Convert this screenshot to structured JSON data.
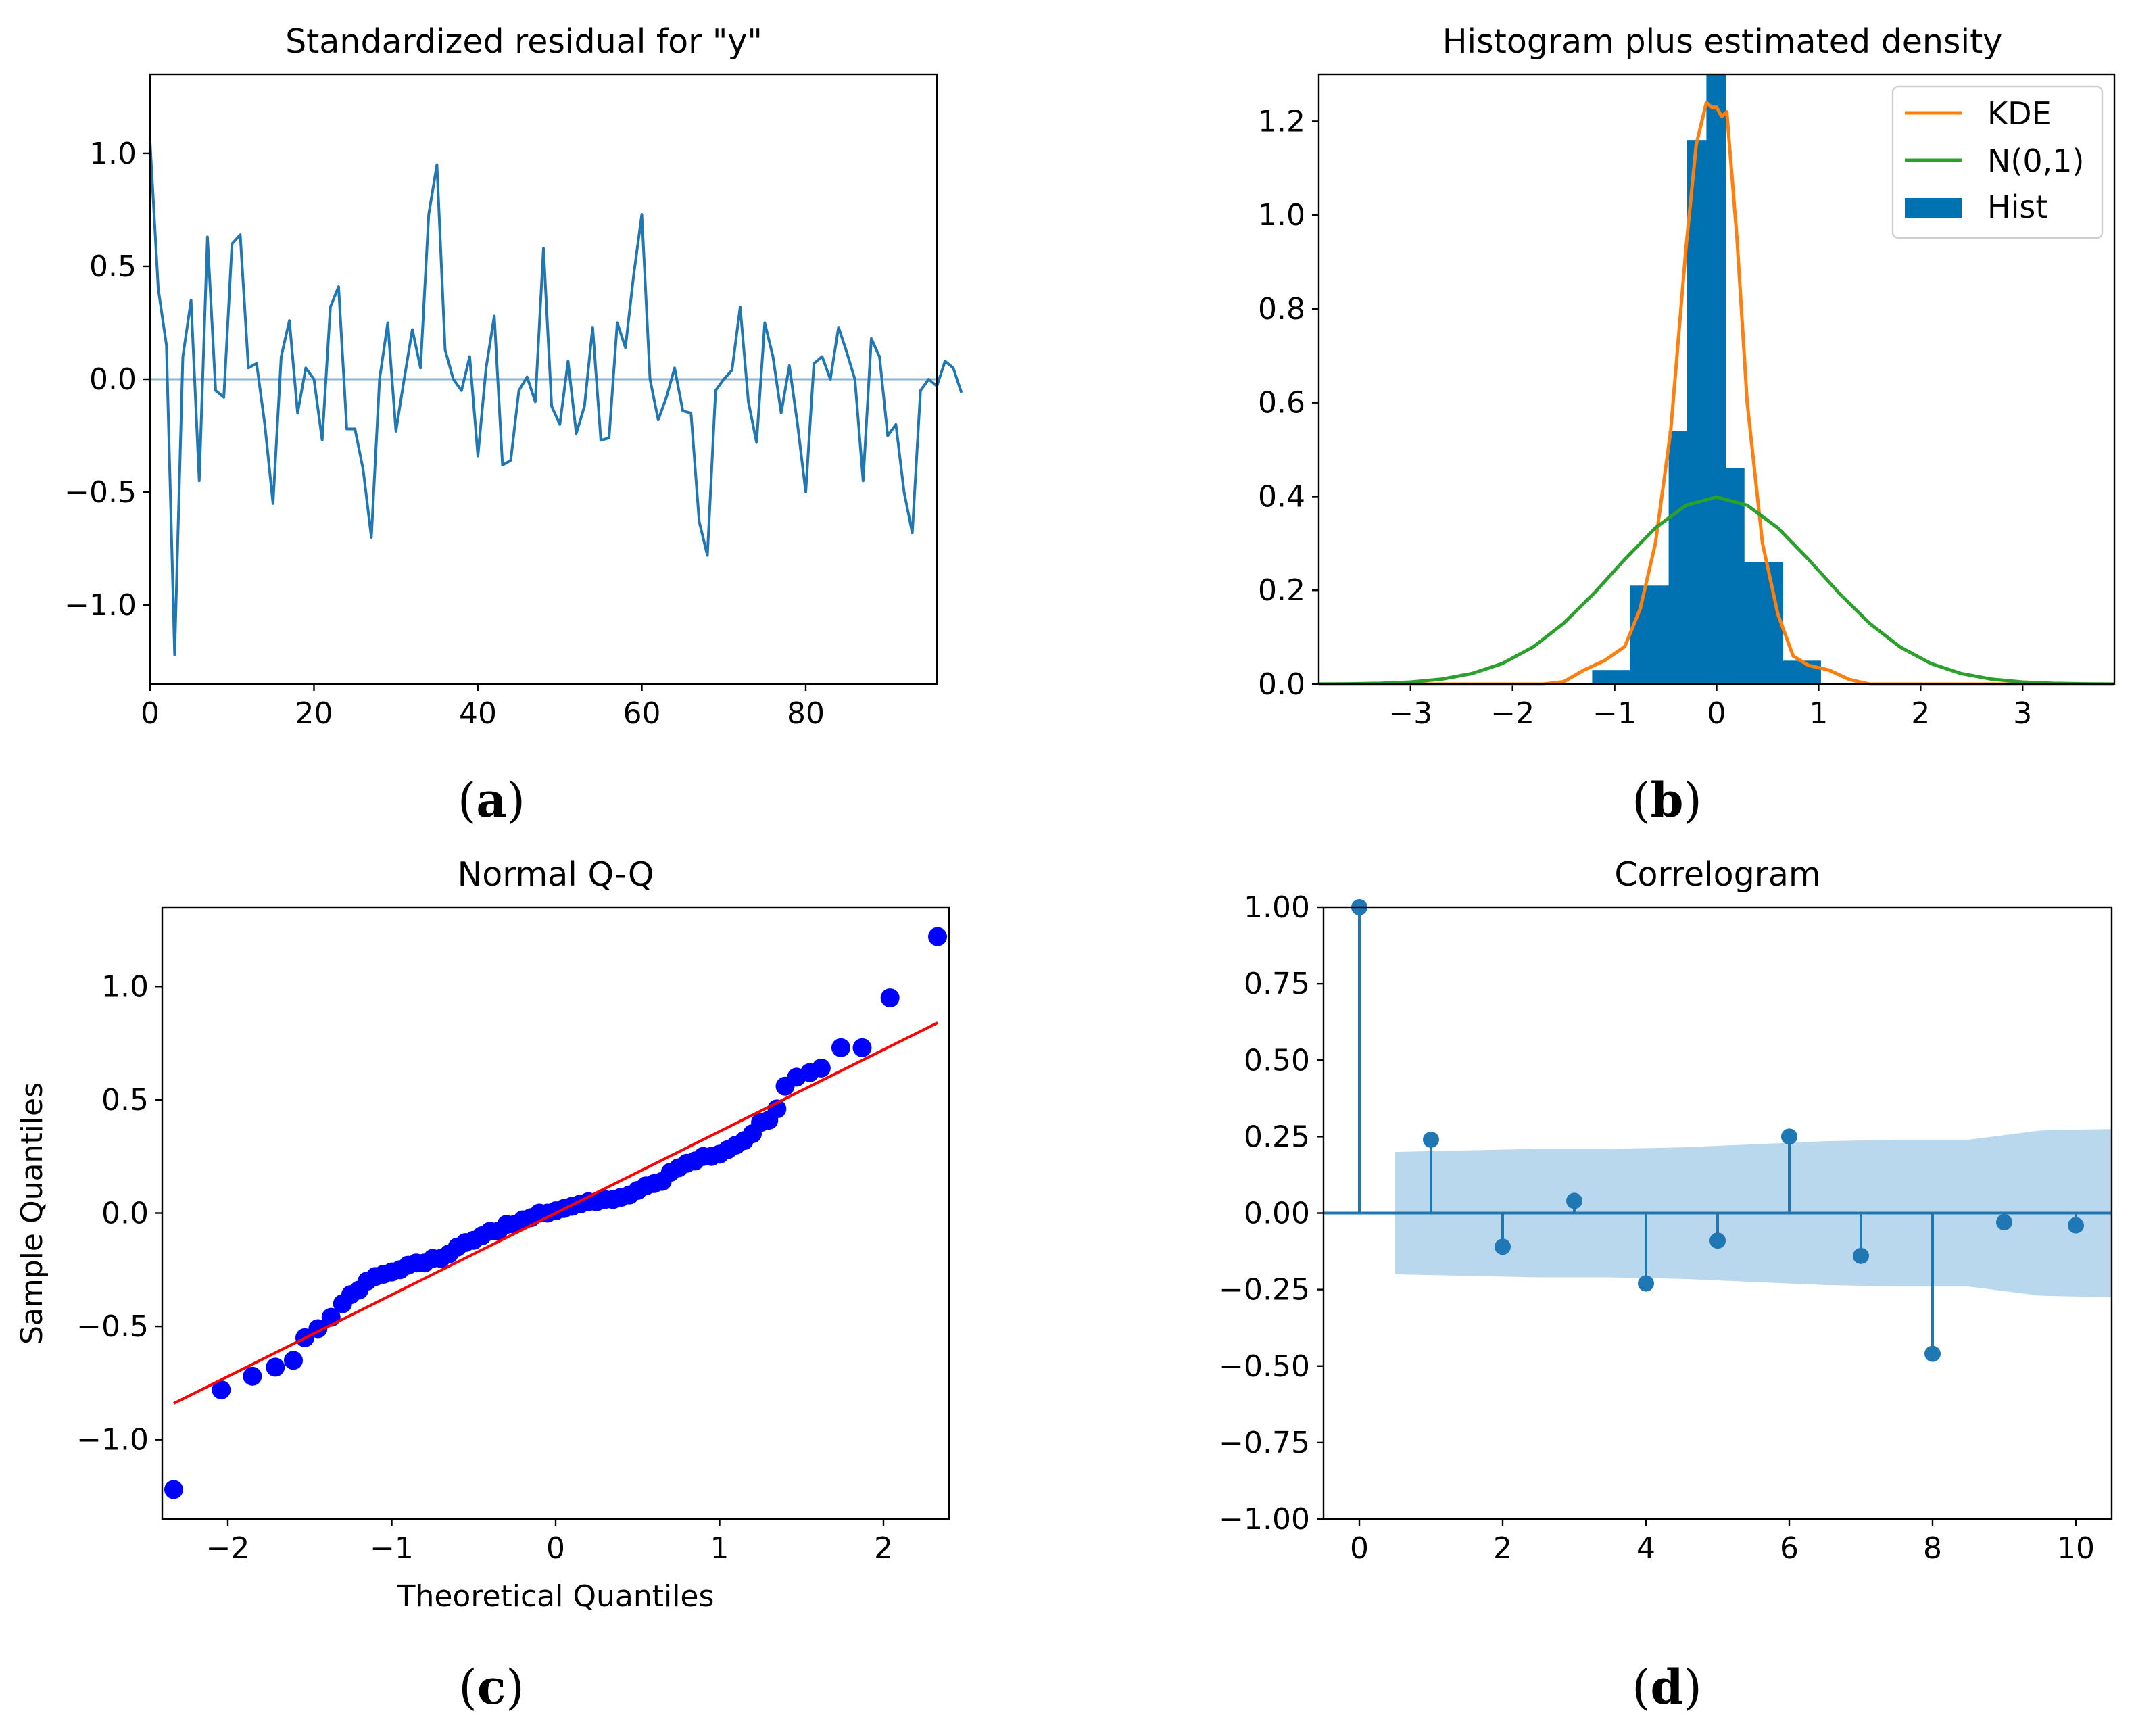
{
  "chart_data": [
    {
      "id": "a",
      "type": "line",
      "caption": "(a)",
      "caption_letter": "a",
      "title": "Standardized residual for \"y\"",
      "xlabel": "",
      "ylabel": "",
      "xlim": [
        0,
        96
      ],
      "ylim": [
        -1.35,
        1.35
      ],
      "xticks": [
        0,
        20,
        40,
        60,
        80
      ],
      "yticks": [
        -1.0,
        -0.5,
        0.0,
        0.5,
        1.0
      ],
      "reference_line": 0,
      "color": "#1f77b4",
      "series": [
        {
          "name": "residual",
          "values": [
            1.05,
            0.4,
            0.15,
            -1.22,
            0.1,
            0.35,
            -0.45,
            0.63,
            -0.05,
            -0.08,
            0.6,
            0.64,
            0.05,
            0.07,
            -0.2,
            -0.55,
            0.1,
            0.26,
            -0.15,
            0.05,
            0.0,
            -0.27,
            0.32,
            0.41,
            -0.22,
            -0.22,
            -0.4,
            -0.7,
            0.0,
            0.25,
            -0.23,
            0.0,
            0.22,
            0.05,
            0.73,
            0.95,
            0.13,
            0.0,
            -0.05,
            0.1,
            -0.34,
            0.05,
            0.28,
            -0.38,
            -0.36,
            -0.05,
            0.01,
            -0.1,
            0.58,
            -0.12,
            -0.2,
            0.08,
            -0.24,
            -0.12,
            0.23,
            -0.27,
            -0.26,
            0.25,
            0.14,
            0.46,
            0.73,
            0.0,
            -0.18,
            -0.08,
            0.05,
            -0.14,
            -0.15,
            -0.63,
            -0.78,
            -0.05,
            0.0,
            0.04,
            0.32,
            -0.1,
            -0.28,
            0.25,
            0.1,
            -0.15,
            0.06,
            -0.2,
            -0.5,
            0.07,
            0.1,
            0.0,
            0.23,
            0.12,
            0.0,
            -0.45,
            0.18,
            0.1,
            -0.25,
            -0.2,
            -0.5,
            -0.68,
            -0.05,
            0.0,
            -0.03,
            0.08,
            0.05,
            -0.06
          ]
        }
      ]
    },
    {
      "id": "b",
      "type": "bar",
      "caption": "(b)",
      "caption_letter": "b",
      "title": "Histogram plus estimated density",
      "xlabel": "",
      "ylabel": "",
      "xlim": [
        -3.9,
        3.9
      ],
      "ylim": [
        0,
        1.3
      ],
      "xticks": [
        -3,
        -2,
        -1,
        0,
        1,
        2,
        3
      ],
      "yticks": [
        0.0,
        0.2,
        0.4,
        0.6,
        0.8,
        1.0,
        1.2
      ],
      "legend_position": "top-right",
      "histogram": {
        "name": "Hist",
        "color": "#0072b2",
        "bin_edges": [
          -1.22,
          -1.03,
          -0.85,
          -0.66,
          -0.47,
          -0.29,
          -0.1,
          0.09,
          0.27,
          0.46,
          0.65,
          0.84,
          1.02,
          1.21
        ],
        "values": [
          0.03,
          0.03,
          0.21,
          0.21,
          0.54,
          1.16,
          1.3,
          0.46,
          0.26,
          0.26,
          0.05,
          0.05,
          0.0
        ]
      },
      "series": [
        {
          "name": "KDE",
          "color": "#ff7f0e",
          "x": [
            -3.9,
            -1.7,
            -1.5,
            -1.3,
            -1.1,
            -0.9,
            -0.75,
            -0.6,
            -0.45,
            -0.3,
            -0.2,
            -0.1,
            -0.05,
            0.0,
            0.05,
            0.1,
            0.2,
            0.3,
            0.45,
            0.6,
            0.75,
            0.9,
            1.1,
            1.3,
            1.5,
            1.7,
            3.9
          ],
          "y": [
            0.0,
            0.0,
            0.005,
            0.03,
            0.05,
            0.08,
            0.16,
            0.3,
            0.54,
            0.93,
            1.15,
            1.24,
            1.23,
            1.23,
            1.21,
            1.22,
            0.95,
            0.6,
            0.3,
            0.15,
            0.06,
            0.04,
            0.03,
            0.01,
            0.0,
            0.0,
            0.0
          ]
        },
        {
          "name": "N(0,1)",
          "color": "#2ca02c",
          "x": [
            -3.9,
            -3.6,
            -3.3,
            -3.0,
            -2.7,
            -2.4,
            -2.1,
            -1.8,
            -1.5,
            -1.2,
            -0.9,
            -0.6,
            -0.3,
            0.0,
            0.3,
            0.6,
            0.9,
            1.2,
            1.5,
            1.8,
            2.1,
            2.4,
            2.7,
            3.0,
            3.3,
            3.6,
            3.9
          ],
          "y": [
            0.0002,
            0.0006,
            0.0017,
            0.0044,
            0.0104,
            0.0224,
            0.044,
            0.079,
            0.1295,
            0.1942,
            0.2661,
            0.3332,
            0.3814,
            0.3989,
            0.3814,
            0.3332,
            0.2661,
            0.1942,
            0.1295,
            0.079,
            0.044,
            0.0224,
            0.0104,
            0.0044,
            0.0017,
            0.0006,
            0.0002
          ]
        }
      ],
      "legend": [
        "KDE",
        "N(0,1)",
        "Hist"
      ]
    },
    {
      "id": "c",
      "type": "scatter",
      "caption": "(c)",
      "caption_letter": "c",
      "title": "Normal Q-Q",
      "xlabel": "Theoretical Quantiles",
      "ylabel": "Sample Quantiles",
      "xlim": [
        -2.4,
        2.4
      ],
      "ylim": [
        -1.35,
        1.35
      ],
      "xticks": [
        -2,
        -1,
        0,
        1,
        2
      ],
      "yticks": [
        -1.0,
        -0.5,
        0.0,
        0.5,
        1.0
      ],
      "point_color": "#0000ff",
      "line_color": "#ff0000",
      "reference_line": {
        "x": [
          -2.33,
          2.33
        ],
        "y": [
          -0.84,
          0.84
        ]
      },
      "points": {
        "x": [
          -2.33,
          -2.04,
          -1.85,
          -1.71,
          -1.6,
          -1.53,
          -1.45,
          -1.37,
          -1.3,
          -1.25,
          -1.2,
          -1.15,
          -1.1,
          -1.05,
          -1.0,
          -0.95,
          -0.9,
          -0.85,
          -0.8,
          -0.75,
          -0.7,
          -0.65,
          -0.6,
          -0.55,
          -0.5,
          -0.45,
          -0.4,
          -0.35,
          -0.3,
          -0.25,
          -0.2,
          -0.15,
          -0.1,
          -0.05,
          0.0,
          0.05,
          0.1,
          0.15,
          0.2,
          0.25,
          0.3,
          0.35,
          0.4,
          0.45,
          0.5,
          0.55,
          0.6,
          0.65,
          0.7,
          0.75,
          0.8,
          0.85,
          0.9,
          0.95,
          1.0,
          1.05,
          1.1,
          1.15,
          1.2,
          1.25,
          1.3,
          1.35,
          1.4,
          1.47,
          1.55,
          1.62,
          1.74,
          1.87,
          2.04,
          2.33
        ],
        "y": [
          -1.22,
          -0.78,
          -0.72,
          -0.68,
          -0.65,
          -0.55,
          -0.51,
          -0.46,
          -0.4,
          -0.36,
          -0.34,
          -0.3,
          -0.28,
          -0.27,
          -0.26,
          -0.25,
          -0.23,
          -0.22,
          -0.22,
          -0.2,
          -0.2,
          -0.18,
          -0.15,
          -0.13,
          -0.12,
          -0.1,
          -0.08,
          -0.08,
          -0.05,
          -0.05,
          -0.03,
          -0.02,
          0.0,
          0.0,
          0.01,
          0.02,
          0.03,
          0.04,
          0.05,
          0.05,
          0.06,
          0.06,
          0.07,
          0.08,
          0.1,
          0.12,
          0.13,
          0.14,
          0.18,
          0.2,
          0.22,
          0.23,
          0.25,
          0.25,
          0.26,
          0.28,
          0.3,
          0.32,
          0.35,
          0.4,
          0.41,
          0.46,
          0.56,
          0.6,
          0.62,
          0.64,
          0.73,
          0.73,
          0.95,
          1.22
        ]
      }
    },
    {
      "id": "d",
      "type": "bar",
      "caption": "(d)",
      "caption_letter": "d",
      "title": "Correlogram",
      "xlabel": "",
      "ylabel": "",
      "xlim": [
        -0.5,
        10.5
      ],
      "ylim": [
        -1.0,
        1.0
      ],
      "xticks": [
        0,
        2,
        4,
        6,
        8,
        10
      ],
      "yticks": [
        -1.0,
        -0.75,
        -0.5,
        -0.25,
        0.0,
        0.25,
        0.5,
        0.75,
        1.0
      ],
      "ytick_labels": [
        "−1.00",
        "−0.75",
        "−0.50",
        "−0.25",
        "0.00",
        "0.25",
        "0.50",
        "0.75",
        "1.00"
      ],
      "color": "#1f77b4",
      "confidence_color": "#aed1ea",
      "lags": [
        0,
        1,
        2,
        3,
        4,
        5,
        6,
        7,
        8,
        9,
        10
      ],
      "values": [
        1.0,
        0.24,
        -0.11,
        0.04,
        -0.23,
        -0.09,
        0.25,
        -0.14,
        -0.46,
        -0.03,
        -0.04
      ],
      "confidence_band": {
        "x": [
          0.5,
          1.5,
          2.5,
          3.5,
          4.5,
          5.5,
          6.5,
          7.5,
          8.5,
          9.5,
          10.5
        ],
        "upper": [
          0.2,
          0.205,
          0.21,
          0.21,
          0.215,
          0.225,
          0.235,
          0.24,
          0.24,
          0.27,
          0.275
        ],
        "lower": [
          -0.2,
          -0.205,
          -0.21,
          -0.21,
          -0.215,
          -0.225,
          -0.235,
          -0.24,
          -0.24,
          -0.27,
          -0.275
        ]
      }
    }
  ]
}
